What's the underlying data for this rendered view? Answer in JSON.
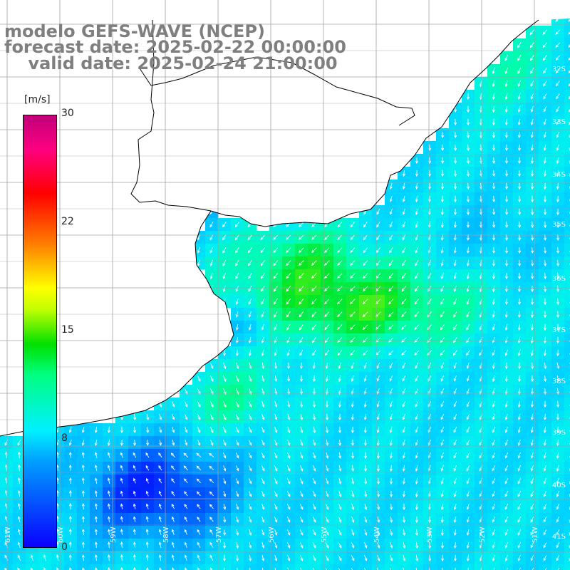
{
  "title": {
    "line1": "modelo GEFS-WAVE (NCEP)",
    "line2": "forecast date: 2025-02-22 00:00:00",
    "line3": "    valid date: 2025-02-24 21:00:00"
  },
  "colorbar": {
    "unit": "[m/s]",
    "ticks": [
      "30",
      "22",
      "15",
      "8",
      "0"
    ],
    "colors": [
      "#0a00ff",
      "#00a0ff",
      "#00f0ff",
      "#00ff80",
      "#00e000",
      "#ffff00",
      "#ff8000",
      "#ff0000",
      "#c0007a"
    ]
  },
  "map": {
    "lat_labels": [
      "32S",
      "33S",
      "34S",
      "35S",
      "36S",
      "37S",
      "38S",
      "39S",
      "40S",
      "41S"
    ],
    "lon_labels": [
      "61W",
      "60W",
      "59W",
      "58W",
      "57W",
      "56W",
      "55W",
      "54W",
      "53W",
      "52W",
      "51W"
    ],
    "land_color": "#ffffff",
    "grid_color": "#a0a0a0",
    "arrow_color": "#ffffff"
  }
}
